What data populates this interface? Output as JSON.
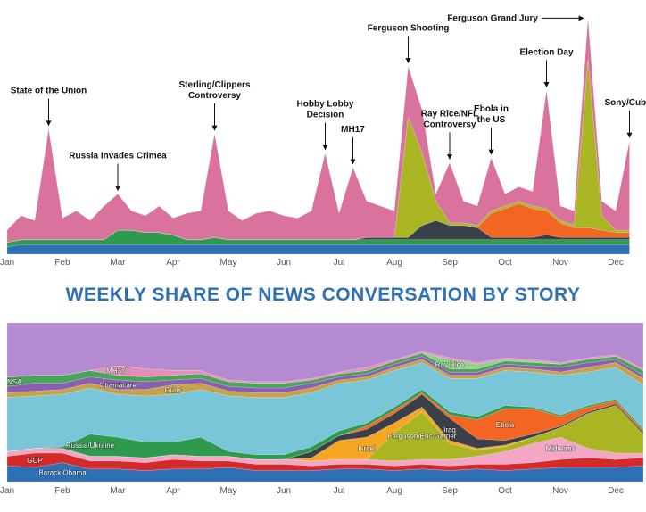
{
  "chart_data": [
    {
      "type": "stacked_area",
      "categories": [
        "Jan",
        null,
        null,
        null,
        "Feb",
        null,
        null,
        null,
        "Mar",
        null,
        null,
        null,
        "Apr",
        null,
        null,
        null,
        "May",
        null,
        null,
        null,
        "Jun",
        null,
        null,
        null,
        "Jul",
        null,
        null,
        null,
        "Aug",
        null,
        null,
        null,
        "Sep",
        null,
        null,
        null,
        "Oct",
        null,
        null,
        null,
        "Nov",
        null,
        null,
        null,
        "Dec",
        null
      ],
      "ylim": [
        0,
        100
      ],
      "series": [
        {
          "color": "#2f6fb5",
          "values": [
            3,
            4,
            4,
            4,
            4,
            4,
            4,
            4,
            4,
            4,
            4,
            4,
            4,
            4,
            4,
            4,
            4,
            4,
            4,
            4,
            4,
            4,
            4,
            4,
            4,
            4,
            4,
            4,
            4,
            4,
            4,
            4,
            4,
            4,
            4,
            4,
            4,
            4,
            4,
            4,
            4,
            4,
            4,
            4,
            4,
            4
          ]
        },
        {
          "color": "#2e9a4d",
          "values": [
            2,
            2,
            2,
            2,
            2,
            2,
            2,
            2,
            6,
            6,
            5,
            5,
            4,
            2,
            2,
            3,
            2,
            2,
            2,
            2,
            2,
            2,
            2,
            2,
            2,
            2,
            2,
            2,
            2,
            2,
            2,
            2,
            2,
            2,
            2,
            2,
            2,
            2,
            2,
            2,
            2,
            2,
            2,
            2,
            2,
            2
          ]
        },
        {
          "color": "#3a3f4a",
          "values": [
            0,
            0,
            0,
            0,
            0,
            0,
            0,
            0,
            0,
            0,
            0,
            0,
            0,
            0,
            0,
            0,
            0,
            0,
            0,
            0,
            0,
            0,
            0,
            0,
            0,
            0,
            1,
            1,
            1,
            1,
            6,
            8,
            6,
            6,
            5,
            1,
            1,
            1,
            1,
            2,
            1,
            1,
            1,
            1,
            1,
            1
          ]
        },
        {
          "color": "#f26522",
          "values": [
            0,
            0,
            0,
            0,
            0,
            0,
            0,
            0,
            0,
            0,
            0,
            0,
            0,
            0,
            0,
            0,
            0,
            0,
            0,
            0,
            0,
            0,
            0,
            0,
            0,
            0,
            0,
            0,
            0,
            0,
            0,
            0,
            0,
            0,
            0,
            10,
            12,
            14,
            12,
            10,
            6,
            4,
            4,
            3,
            2,
            2
          ]
        },
        {
          "color": "#a9b523",
          "values": [
            0,
            0,
            0,
            0,
            0,
            0,
            0,
            0,
            0,
            0,
            0,
            0,
            0,
            0,
            0,
            0,
            0,
            0,
            0,
            0,
            0,
            0,
            0,
            0,
            0,
            0,
            0,
            0,
            0,
            50,
            30,
            8,
            1,
            1,
            1,
            1,
            1,
            1,
            1,
            1,
            1,
            1,
            70,
            6,
            1,
            1
          ]
        },
        {
          "color": "#d9729c",
          "values": [
            5,
            10,
            8,
            46,
            9,
            12,
            8,
            14,
            15,
            8,
            7,
            11,
            7,
            11,
            12,
            43,
            12,
            8,
            11,
            12,
            10,
            9,
            12,
            36,
            11,
            30,
            15,
            13,
            11,
            21,
            18,
            3,
            25,
            9,
            8,
            22,
            5,
            6,
            6,
            49,
            6,
            6,
            17,
            6,
            8,
            37
          ]
        }
      ],
      "annotations": [
        {
          "text": [
            "State of the Union"
          ],
          "index": 3
        },
        {
          "text": [
            "Russia Invades Crimea"
          ],
          "index": 8
        },
        {
          "text": [
            "Sterling/Clippers",
            "Controversy"
          ],
          "index": 15
        },
        {
          "text": [
            "Hobby Lobby",
            "Decision"
          ],
          "index": 23
        },
        {
          "text": [
            "MH17"
          ],
          "index": 25
        },
        {
          "text": [
            "Ferguson Shooting"
          ],
          "index": 29
        },
        {
          "text": [
            "Ray Rice/NFL",
            "Controversy"
          ],
          "index": 32
        },
        {
          "text": [
            "Ebola in",
            "the US"
          ],
          "index": 35
        },
        {
          "text": [
            "Election Day"
          ],
          "index": 39
        },
        {
          "text": [
            "Ferguson Grand Jury"
          ],
          "index": 42
        },
        {
          "text": [
            "Sony/Cuba"
          ],
          "index": 45
        }
      ]
    },
    {
      "type": "stacked_area_100",
      "title": "WEEKLY SHARE OF NEWS CONVERSATION BY STORY",
      "categories": [
        "Jan",
        null,
        "Feb",
        null,
        "Mar",
        null,
        "Apr",
        null,
        "May",
        null,
        "Jun",
        null,
        "Jul",
        null,
        "Aug",
        null,
        "Sep",
        null,
        "Oct",
        null,
        "Nov",
        null,
        "Dec",
        null
      ],
      "ylim": [
        0,
        100
      ],
      "series": [
        {
          "name": "Barack Obama",
          "color": "#2f6fb5",
          "values": [
            10,
            9,
            12,
            8,
            8,
            7,
            8,
            8,
            9,
            7,
            7,
            7,
            8,
            8,
            7,
            8,
            7,
            8,
            7,
            8,
            9,
            9,
            9,
            10
          ]
        },
        {
          "name": "GOP",
          "color": "#d42a2a",
          "values": [
            6,
            9,
            6,
            5,
            5,
            5,
            6,
            5,
            4,
            4,
            4,
            3,
            3,
            3,
            3,
            3,
            3,
            3,
            4,
            4,
            5,
            6,
            5,
            5
          ]
        },
        {
          "name": "Midterms",
          "color": "#f4a6c6",
          "values": [
            3,
            3,
            3,
            3,
            3,
            3,
            3,
            3,
            3,
            3,
            3,
            3,
            3,
            3,
            3,
            3,
            4,
            5,
            8,
            12,
            14,
            6,
            4,
            3
          ]
        },
        {
          "name": "Ferguson/Eric Garner",
          "color": "#a9b523",
          "values": [
            0,
            0,
            0,
            0,
            0,
            0,
            0,
            0,
            0,
            0,
            0,
            0,
            0,
            0,
            18,
            30,
            10,
            4,
            3,
            4,
            6,
            22,
            30,
            12
          ]
        },
        {
          "name": "Israel",
          "color": "#f5a623",
          "values": [
            0,
            0,
            0,
            0,
            0,
            0,
            0,
            0,
            0,
            0,
            0,
            2,
            12,
            14,
            6,
            3,
            2,
            1,
            1,
            0,
            0,
            0,
            0,
            0
          ]
        },
        {
          "name": "Iraq",
          "color": "#3a3f4a",
          "values": [
            0,
            0,
            0,
            0,
            0,
            0,
            0,
            0,
            0,
            0,
            0,
            4,
            3,
            5,
            6,
            8,
            14,
            6,
            3,
            2,
            1,
            1,
            1,
            1
          ]
        },
        {
          "name": "Ebola",
          "color": "#f26522",
          "values": [
            0,
            0,
            0,
            0,
            0,
            0,
            0,
            0,
            0,
            0,
            0,
            0,
            0,
            2,
            2,
            1,
            2,
            12,
            20,
            16,
            6,
            3,
            2,
            1
          ]
        },
        {
          "name": "Russia/Ukraine",
          "color": "#2e9a4d",
          "values": [
            0,
            0,
            1,
            14,
            12,
            10,
            8,
            12,
            3,
            3,
            3,
            3,
            3,
            2,
            2,
            2,
            2,
            2,
            2,
            1,
            1,
            1,
            1,
            1
          ]
        },
        {
          "color": "#7ac6d9",
          "values": [
            34,
            33,
            33,
            29,
            27,
            29,
            30,
            30,
            35,
            36,
            36,
            34,
            30,
            27,
            23,
            17,
            21,
            24,
            22,
            22,
            25,
            21,
            20,
            28
          ]
        },
        {
          "name": "Guns",
          "color": "#c8a24a",
          "values": [
            3,
            3,
            3,
            3,
            3,
            4,
            6,
            4,
            3,
            3,
            3,
            3,
            2,
            2,
            2,
            2,
            2,
            2,
            2,
            2,
            2,
            3,
            3,
            4
          ]
        },
        {
          "name": "Obamacare",
          "color": "#8a5fb0",
          "values": [
            4,
            5,
            4,
            4,
            6,
            5,
            3,
            3,
            3,
            3,
            3,
            3,
            2,
            2,
            2,
            2,
            2,
            2,
            2,
            2,
            3,
            3,
            2,
            2
          ]
        },
        {
          "name": "NSA",
          "color": "#4aa35a",
          "values": [
            6,
            5,
            5,
            4,
            3,
            3,
            3,
            3,
            3,
            3,
            3,
            2,
            2,
            2,
            2,
            2,
            2,
            2,
            2,
            2,
            2,
            2,
            2,
            3
          ]
        },
        {
          "name": "Ray Rice",
          "color": "#8fd18a",
          "values": [
            0,
            0,
            0,
            0,
            0,
            0,
            0,
            0,
            0,
            0,
            0,
            0,
            0,
            0,
            0,
            0,
            6,
            3,
            1,
            1,
            0,
            0,
            0,
            0
          ]
        },
        {
          "name": "MH370",
          "color": "#e58fb8",
          "values": [
            0,
            0,
            0,
            0,
            6,
            5,
            3,
            2,
            1,
            1,
            1,
            1,
            1,
            2,
            1,
            1,
            1,
            1,
            1,
            1,
            1,
            1,
            1,
            1
          ]
        },
        {
          "color": "#b48ad1",
          "values": [
            34,
            33,
            33,
            30,
            27,
            29,
            30,
            30,
            36,
            37,
            37,
            35,
            31,
            28,
            23,
            18,
            22,
            25,
            22,
            23,
            25,
            22,
            20,
            29
          ]
        }
      ]
    }
  ]
}
